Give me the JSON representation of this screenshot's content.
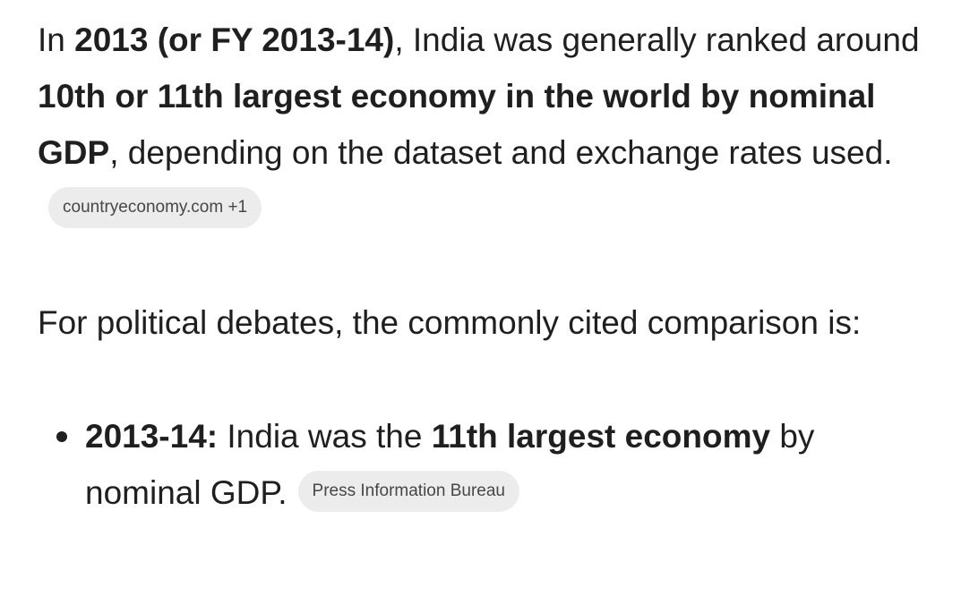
{
  "paragraphs": [
    {
      "runs": [
        {
          "text": "In ",
          "bold": false
        },
        {
          "text": "2013 (or FY 2013-14)",
          "bold": true
        },
        {
          "text": ", India was generally ranked around ",
          "bold": false
        },
        {
          "text": "10th or 11th largest economy in the world by nominal GDP",
          "bold": true
        },
        {
          "text": ", depending on the dataset and exchange rates used.",
          "bold": false
        }
      ],
      "source": "countryeconomy.com +1"
    },
    {
      "runs": [
        {
          "text": "For political debates, the commonly cited comparison is:",
          "bold": false
        }
      ]
    }
  ],
  "bullets": [
    {
      "runs": [
        {
          "text": "2013-14:",
          "bold": true
        },
        {
          "text": " India was the ",
          "bold": false
        },
        {
          "text": "11th largest economy",
          "bold": true
        },
        {
          "text": " by nominal GDP.",
          "bold": false
        }
      ],
      "source": "Press Information Bureau"
    }
  ]
}
